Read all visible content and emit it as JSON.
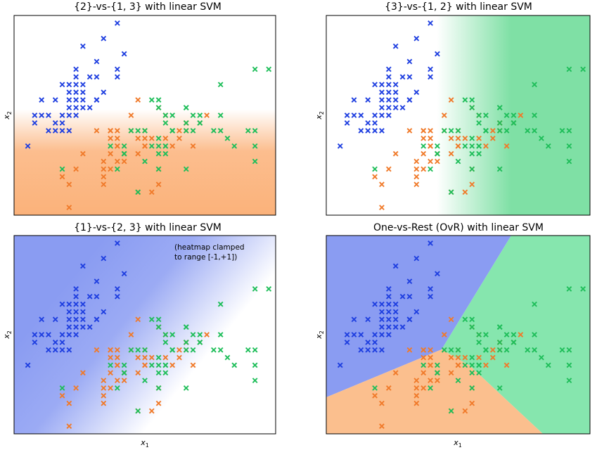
{
  "chart_data": [
    {
      "type": "scatter",
      "title": "{2}-vs-{1, 3} with linear SVM",
      "xlabel": "",
      "ylabel": "x₂",
      "ylabel_base": "x",
      "ylabel_sub": "2",
      "note": "",
      "heatmap": "orange-bottom"
    },
    {
      "type": "scatter",
      "title": "{3}-vs-{1, 2} with linear SVM",
      "xlabel": "",
      "ylabel": "x₂",
      "ylabel_base": "x",
      "ylabel_sub": "2",
      "note": "",
      "heatmap": "green-right"
    },
    {
      "type": "scatter",
      "title": "{1}-vs-{2, 3} with linear SVM",
      "xlabel": "x₁",
      "xlabel_base": "x",
      "xlabel_sub": "1",
      "ylabel": "x₂",
      "ylabel_base": "x",
      "ylabel_sub": "2",
      "note": "",
      "note_lines": [
        "(heatmap clamped",
        "to range [-1,+1])"
      ],
      "heatmap": "blue-diagonal"
    },
    {
      "type": "scatter",
      "title": "One-vs-Rest (OvR) with linear SVM",
      "xlabel": "x₁",
      "xlabel_base": "x",
      "xlabel_sub": "1",
      "ylabel": "x₂",
      "ylabel_base": "x",
      "ylabel_sub": "2",
      "note": "",
      "heatmap": "ovr-regions"
    }
  ],
  "data_points": {
    "xlim": [
      4.2,
      8.0
    ],
    "ylim": [
      1.9,
      4.5
    ],
    "series": [
      {
        "class": 1,
        "color": "#1f3fe0",
        "points": [
          [
            4.5,
            3.2
          ],
          [
            4.5,
            3.1
          ],
          [
            4.6,
            3.4
          ],
          [
            4.6,
            3.2
          ],
          [
            4.7,
            3.2
          ],
          [
            4.8,
            3.0
          ],
          [
            4.8,
            3.4
          ],
          [
            4.8,
            3.1
          ],
          [
            4.9,
            3.0
          ],
          [
            4.9,
            3.1
          ],
          [
            4.9,
            3.2
          ],
          [
            5.0,
            3.4
          ],
          [
            5.0,
            3.5
          ],
          [
            5.0,
            3.6
          ],
          [
            5.0,
            3.0
          ],
          [
            5.0,
            3.2
          ],
          [
            5.1,
            3.5
          ],
          [
            5.1,
            3.8
          ],
          [
            5.1,
            3.4
          ],
          [
            5.1,
            3.3
          ],
          [
            5.1,
            3.7
          ],
          [
            5.2,
            3.4
          ],
          [
            5.2,
            3.5
          ],
          [
            5.2,
            4.1
          ],
          [
            5.3,
            3.7
          ],
          [
            5.4,
            3.9
          ],
          [
            5.4,
            3.4
          ],
          [
            5.5,
            4.2
          ],
          [
            5.7,
            4.4
          ],
          [
            5.8,
            4.0
          ],
          [
            5.5,
            3.5
          ],
          [
            5.7,
            3.8
          ],
          [
            5.4,
            3.7
          ],
          [
            5.4,
            3.4
          ],
          [
            5.7,
            3.7
          ],
          [
            5.3,
            3.3
          ],
          [
            5.2,
            3.3
          ],
          [
            5.0,
            3.3
          ],
          [
            5.1,
            3.6
          ],
          [
            5.2,
            3.6
          ],
          [
            4.7,
            3.0
          ],
          [
            4.9,
            3.6
          ],
          [
            5.1,
            3.2
          ],
          [
            4.4,
            2.8
          ]
        ]
      },
      {
        "class": 2,
        "color": "#f07a2a",
        "points": [
          [
            7.0,
            3.2
          ],
          [
            6.4,
            3.2
          ],
          [
            6.9,
            3.1
          ],
          [
            5.5,
            2.3
          ],
          [
            6.5,
            2.8
          ],
          [
            5.7,
            2.8
          ],
          [
            6.3,
            3.3
          ],
          [
            4.9,
            2.4
          ],
          [
            6.6,
            2.9
          ],
          [
            5.2,
            2.7
          ],
          [
            5.0,
            2.0
          ],
          [
            5.9,
            3.0
          ],
          [
            6.0,
            2.2
          ],
          [
            6.1,
            2.9
          ],
          [
            5.6,
            2.9
          ],
          [
            6.7,
            3.1
          ],
          [
            5.6,
            3.0
          ],
          [
            5.8,
            2.7
          ],
          [
            6.2,
            2.2
          ],
          [
            5.6,
            2.5
          ],
          [
            5.9,
            3.2
          ],
          [
            6.1,
            2.8
          ],
          [
            6.3,
            2.5
          ],
          [
            6.1,
            2.8
          ],
          [
            6.4,
            2.9
          ],
          [
            6.6,
            3.0
          ],
          [
            6.8,
            2.8
          ],
          [
            6.7,
            3.0
          ],
          [
            6.0,
            2.9
          ],
          [
            5.7,
            2.6
          ],
          [
            5.5,
            2.4
          ],
          [
            5.8,
            2.7
          ],
          [
            6.0,
            2.7
          ],
          [
            5.4,
            3.0
          ],
          [
            6.0,
            3.4
          ],
          [
            6.7,
            3.1
          ],
          [
            6.3,
            2.3
          ],
          [
            5.6,
            3.0
          ],
          [
            5.5,
            2.5
          ],
          [
            5.5,
            2.6
          ],
          [
            6.1,
            3.0
          ],
          [
            5.8,
            2.6
          ],
          [
            5.0,
            2.3
          ],
          [
            5.6,
            2.7
          ],
          [
            5.7,
            3.0
          ],
          [
            5.7,
            2.9
          ],
          [
            6.2,
            2.9
          ],
          [
            5.1,
            2.5
          ],
          [
            5.7,
            2.8
          ]
        ]
      },
      {
        "class": 3,
        "color": "#1fbe5a",
        "points": [
          [
            6.3,
            3.3
          ],
          [
            5.8,
            2.7
          ],
          [
            7.1,
            3.0
          ],
          [
            6.3,
            2.9
          ],
          [
            6.5,
            3.0
          ],
          [
            7.6,
            3.0
          ],
          [
            4.9,
            2.5
          ],
          [
            7.3,
            2.9
          ],
          [
            6.7,
            2.5
          ],
          [
            7.2,
            3.6
          ],
          [
            6.5,
            3.2
          ],
          [
            6.4,
            2.7
          ],
          [
            6.8,
            3.0
          ],
          [
            5.7,
            2.5
          ],
          [
            5.8,
            2.8
          ],
          [
            6.4,
            3.2
          ],
          [
            6.5,
            3.0
          ],
          [
            7.7,
            3.8
          ],
          [
            7.7,
            2.6
          ],
          [
            6.0,
            2.2
          ],
          [
            6.9,
            3.2
          ],
          [
            5.6,
            2.8
          ],
          [
            7.7,
            2.8
          ],
          [
            6.3,
            2.7
          ],
          [
            6.7,
            3.3
          ],
          [
            7.2,
            3.2
          ],
          [
            6.2,
            2.8
          ],
          [
            6.1,
            3.0
          ],
          [
            6.4,
            2.8
          ],
          [
            7.2,
            3.0
          ],
          [
            7.4,
            2.8
          ],
          [
            7.9,
            3.8
          ],
          [
            6.4,
            2.8
          ],
          [
            6.3,
            2.8
          ],
          [
            6.1,
            2.6
          ],
          [
            7.7,
            3.0
          ],
          [
            6.3,
            3.4
          ],
          [
            6.4,
            3.1
          ],
          [
            6.0,
            3.0
          ],
          [
            6.9,
            3.1
          ],
          [
            6.7,
            3.1
          ],
          [
            6.9,
            3.1
          ],
          [
            5.8,
            2.7
          ],
          [
            6.8,
            3.2
          ],
          [
            6.7,
            3.3
          ],
          [
            6.7,
            3.0
          ],
          [
            6.3,
            2.5
          ],
          [
            6.5,
            3.0
          ],
          [
            6.2,
            3.4
          ],
          [
            5.9,
            3.0
          ]
        ]
      }
    ]
  }
}
